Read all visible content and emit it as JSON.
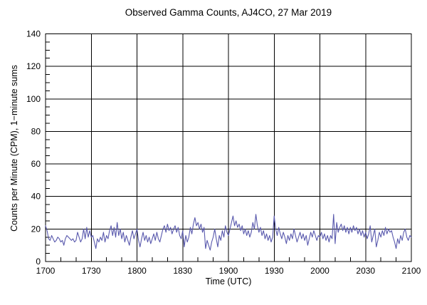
{
  "chart_data": {
    "type": "line",
    "title": "Observed Gamma Counts, AJ4CO, 27 Mar 2019",
    "xlabel": "Time (UTC)",
    "ylabel": "Counts per Minute (CPM), 1−minute sums",
    "background_color": "#ffffff",
    "axis_color": "#000000",
    "grid": "major ticks drawn as full-length black gridlines; short inward minor ticks on left and bottom axes",
    "legend": "none",
    "x_axis": {
      "tick_labels": [
        "1700",
        "1730",
        "1800",
        "1830",
        "1900",
        "1930",
        "2000",
        "2030",
        "2100"
      ],
      "tick_minutes": [
        0,
        30,
        60,
        90,
        120,
        150,
        180,
        210,
        240
      ],
      "minor_tick_step_minutes": 10,
      "range_minutes": [
        0,
        240
      ]
    },
    "y_axis": {
      "tick_labels": [
        "0",
        "20",
        "40",
        "60",
        "80",
        "100",
        "120",
        "140"
      ],
      "ticks": [
        0,
        20,
        40,
        60,
        80,
        100,
        120,
        140
      ],
      "minor_tick_step": 5,
      "range": [
        0,
        140
      ]
    },
    "series": [
      {
        "name": "gamma-counts-1min-sums",
        "color": "#5959ad",
        "start_minute_after_1700_utc": 0,
        "step_minutes": 1,
        "values": [
          22,
          19,
          14,
          13,
          16,
          14,
          12,
          13,
          15,
          14,
          12,
          13,
          10,
          14,
          16,
          15,
          14,
          13,
          14,
          12,
          13,
          18,
          15,
          12,
          14,
          20,
          14,
          21,
          15,
          19,
          15,
          16,
          12,
          8,
          14,
          12,
          15,
          13,
          18,
          12,
          16,
          14,
          19,
          22,
          16,
          21,
          15,
          24,
          16,
          20,
          14,
          18,
          12,
          16,
          13,
          10,
          15,
          19,
          14,
          17,
          20,
          13,
          9,
          14,
          18,
          13,
          16,
          12,
          15,
          11,
          14,
          17,
          13,
          18,
          14,
          12,
          16,
          20,
          22,
          18,
          23,
          19,
          21,
          17,
          20,
          22,
          18,
          21,
          16,
          14,
          19,
          9,
          16,
          12,
          15,
          21,
          17,
          23,
          27,
          22,
          24,
          20,
          23,
          18,
          21,
          8,
          13,
          10,
          7,
          12,
          15,
          20,
          14,
          9,
          16,
          13,
          19,
          15,
          22,
          18,
          16,
          20,
          24,
          28,
          22,
          25,
          21,
          23,
          19,
          22,
          17,
          20,
          16,
          19,
          15,
          18,
          24,
          20,
          29,
          22,
          18,
          21,
          16,
          19,
          14,
          17,
          13,
          16,
          12,
          15,
          28,
          20,
          16,
          21,
          17,
          14,
          18,
          15,
          11,
          16,
          13,
          17,
          14,
          20,
          16,
          12,
          15,
          18,
          14,
          17,
          13,
          16,
          10,
          14,
          18,
          15,
          19,
          16,
          13,
          16,
          15,
          18,
          14,
          17,
          13,
          16,
          12,
          16,
          14,
          29,
          11,
          24,
          18,
          21,
          23,
          19,
          22,
          18,
          21,
          17,
          21,
          18,
          22,
          19,
          21,
          17,
          20,
          16,
          19,
          15,
          18,
          14,
          17,
          22,
          12,
          16,
          20,
          9,
          13,
          18,
          15,
          19,
          16,
          21,
          17,
          20,
          18,
          19,
          15,
          12,
          8,
          14,
          11,
          16,
          13,
          18,
          20,
          15,
          13,
          16,
          15
        ]
      }
    ]
  }
}
